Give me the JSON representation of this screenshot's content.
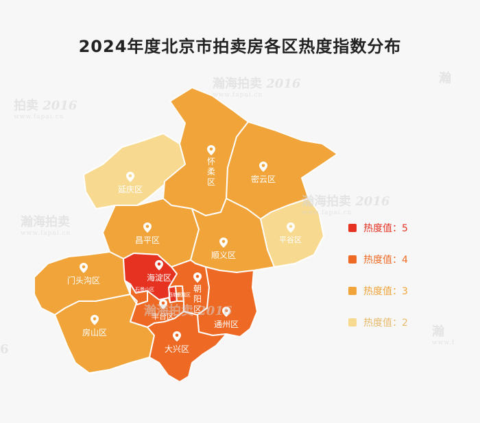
{
  "title": "2024年度北京市拍卖房各区热度指数分布",
  "legend": [
    {
      "label": "热度值：5",
      "color": "#e63221"
    },
    {
      "label": "热度值：4",
      "color": "#ee6a24"
    },
    {
      "label": "热度值：3",
      "color": "#f0a43a"
    },
    {
      "label": "热度值：2",
      "color": "#f7d990"
    }
  ],
  "districts": {
    "huairou": {
      "name": "怀\n柔\n区",
      "level": 3
    },
    "miyun": {
      "name": "密云区",
      "level": 3
    },
    "yanqing": {
      "name": "延庆区",
      "level": 2
    },
    "pinggu": {
      "name": "平谷区",
      "level": 2
    },
    "changping": {
      "name": "昌平区",
      "level": 3
    },
    "shunyi": {
      "name": "顺义区",
      "level": 3
    },
    "mentougou": {
      "name": "门头沟区",
      "level": 3
    },
    "haidian": {
      "name": "海淀区",
      "level": 5
    },
    "chaoyang": {
      "name": "朝\n阳\n区",
      "level": 4
    },
    "shijingshan": {
      "name": "石景山区",
      "level": 4
    },
    "xicheng": {
      "name": "西城区",
      "level": 5
    },
    "dongcheng": {
      "name": "东城区",
      "level": 4
    },
    "fengtai": {
      "name": "丰台区",
      "level": 4
    },
    "tongzhou": {
      "name": "通州区",
      "level": 4
    },
    "fangshan": {
      "name": "房山区",
      "level": 3
    },
    "daxing": {
      "name": "大兴区",
      "level": 4
    }
  },
  "watermark": {
    "brand": "瀚海拍卖",
    "year": "2016",
    "since": "Since",
    "url": "www.fapai.cn"
  }
}
